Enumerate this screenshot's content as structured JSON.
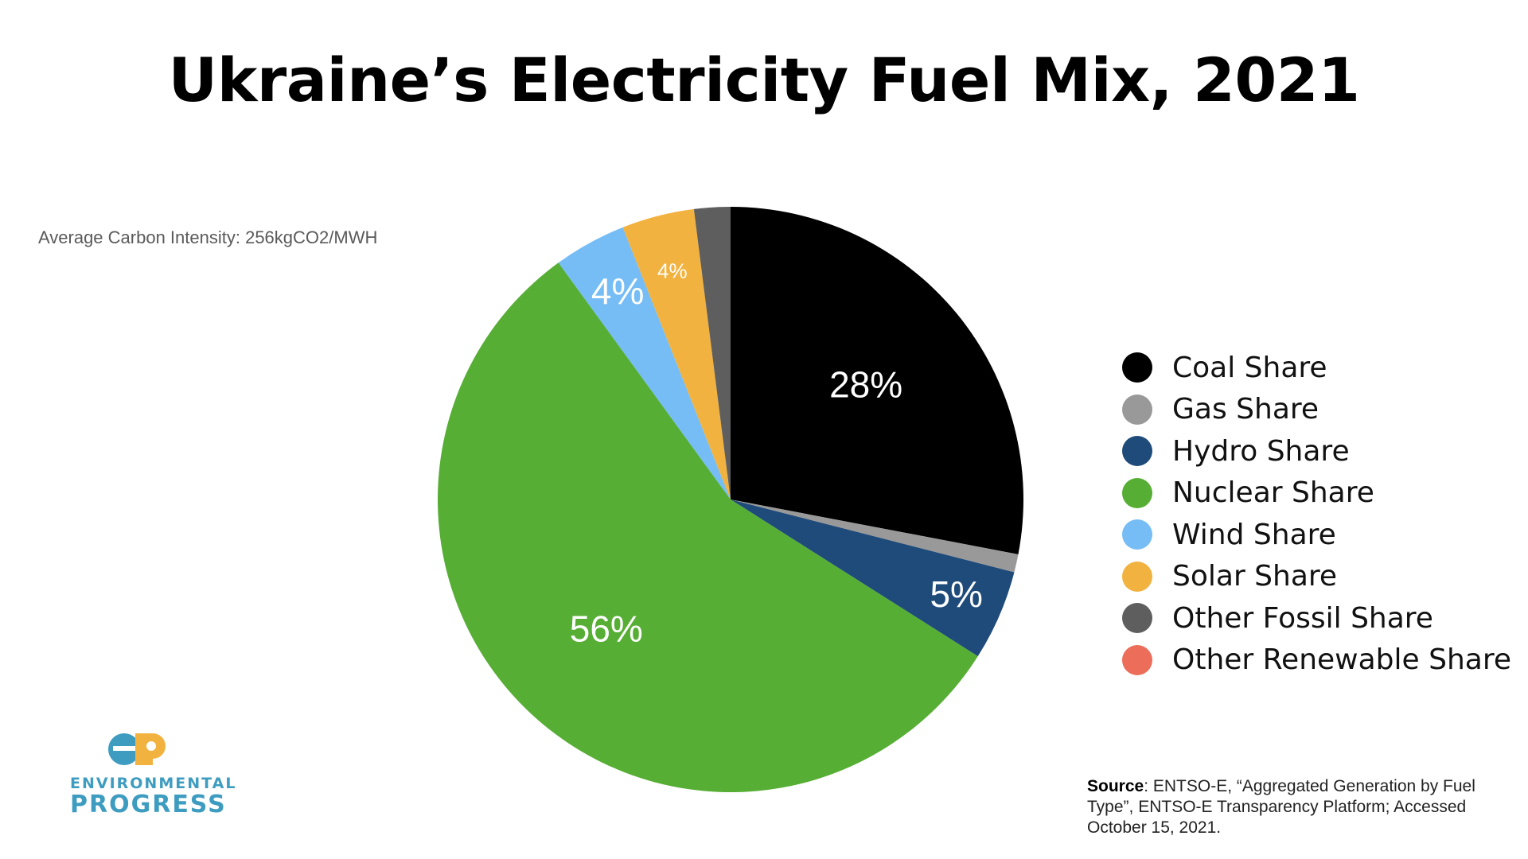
{
  "chart_data": {
    "type": "pie",
    "title": "Ukraine’s Electricity Fuel Mix, 2021",
    "annotation": "Average Carbon Intensity: 256kgCO2/MWH",
    "slices": [
      {
        "name": "Coal Share",
        "value": 28,
        "label": "28%",
        "color": "#000000"
      },
      {
        "name": "Gas Share",
        "value": 1,
        "label": "1%",
        "color": "#999999"
      },
      {
        "name": "Hydro Share",
        "value": 5,
        "label": "5%",
        "color": "#1f4b7a"
      },
      {
        "name": "Nuclear Share",
        "value": 56,
        "label": "56%",
        "color": "#56ae34"
      },
      {
        "name": "Wind Share",
        "value": 4,
        "label": "4%",
        "color": "#76bdf5"
      },
      {
        "name": "Solar Share",
        "value": 4,
        "label": "4%",
        "color": "#f2b240"
      },
      {
        "name": "Other Fossil Share",
        "value": 2,
        "label": "2%",
        "color": "#5e5e5e"
      },
      {
        "name": "Other Renewable Share",
        "value": 0,
        "label": "",
        "color": "#ec6e5a"
      }
    ],
    "legend_position": "right"
  },
  "logo": {
    "line1": "ENVIRONMENTAL",
    "line2": "PROGRESS",
    "mark_colors": [
      "#3d9cc0",
      "#f2b240"
    ]
  },
  "source": {
    "label": "Source",
    "text": ": ENTSO-E, “Aggregated Generation by Fuel Type”, ENTSO-E Transparency Platform; Accessed October 15, 2021."
  }
}
